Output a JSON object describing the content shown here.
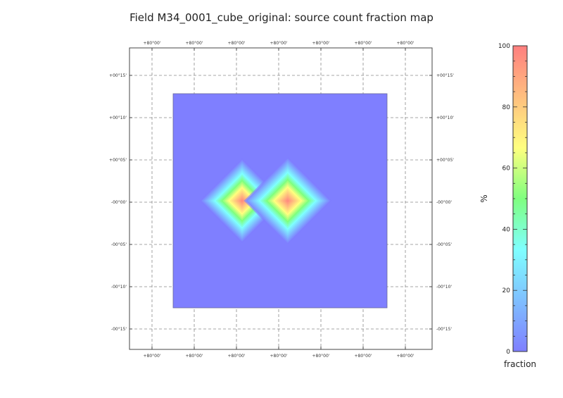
{
  "chart_data": {
    "type": "heatmap",
    "title": "Field M34_0001_cube_original: source count fraction map",
    "x_ticks": [
      "+80°00'",
      "+80°00'",
      "+80°00'",
      "+80°00'",
      "+80°00'",
      "+80°00'",
      "+80°00'"
    ],
    "y_ticks": [
      "+00°15'",
      "+00°10'",
      "+00°05'",
      "-00°00'",
      "-00°05'",
      "-00°10'",
      "-00°15'"
    ],
    "y_ticks_right": [
      "+00°15'",
      "+00°10'",
      "+00°05'",
      "-00°00'",
      "-00°05'",
      "-00°10'",
      "-00°15'"
    ],
    "grid": true,
    "background_value": 0,
    "sources": [
      {
        "x": -0.9,
        "y": 0.0,
        "peak": 100,
        "halfwidth": 0.5
      },
      {
        "x": 0.18,
        "y": 0.0,
        "peak": 100,
        "halfwidth": 0.52
      }
    ],
    "colorbar": {
      "min": 0,
      "max": 100,
      "ticks": [
        0,
        20,
        40,
        60,
        80,
        100
      ],
      "tick_labels": [
        "0",
        "20",
        "40",
        "60",
        "80",
        "100"
      ],
      "unit_label": "%",
      "label": "fraction",
      "colormap": [
        "#7f7fff",
        "#7fbfff",
        "#7fffff",
        "#7fff7f",
        "#ffff7f",
        "#ffbf7f",
        "#ff7f7f"
      ]
    }
  }
}
